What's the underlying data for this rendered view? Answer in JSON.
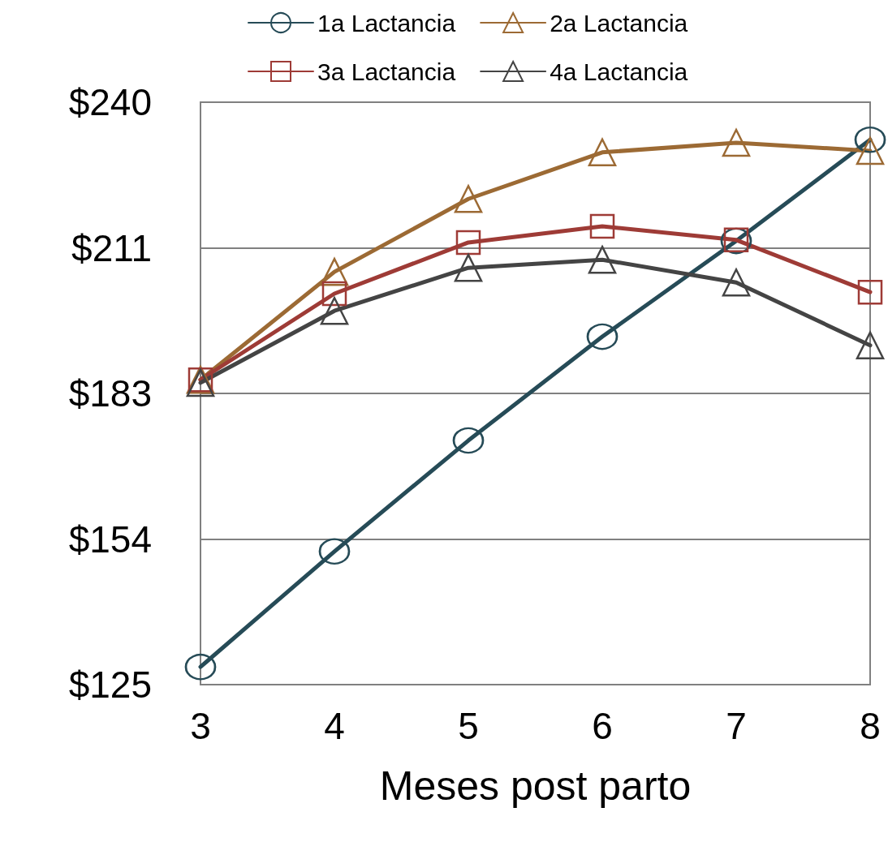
{
  "chart_data": {
    "type": "line",
    "xlabel": "Meses post parto",
    "x": [
      3,
      4,
      5,
      6,
      7,
      8
    ],
    "series": [
      {
        "name": "1a Lactancia",
        "color": "#264b57",
        "marker": "circle",
        "values": [
          128.5,
          151.3,
          173.2,
          193.7,
          212.6,
          232.6
        ]
      },
      {
        "name": "2a Lactancia",
        "color": "#9c6a34",
        "marker": "triangle",
        "values": [
          185.2,
          206.5,
          220.9,
          230.1,
          232,
          230.4
        ]
      },
      {
        "name": "3a Lactancia",
        "color": "#9e3b36",
        "marker": "square",
        "values": [
          185.2,
          202.2,
          212.3,
          215.5,
          212.8,
          202.5
        ]
      },
      {
        "name": "4a Lactancia",
        "color": "#444444",
        "marker": "triangle",
        "values": [
          184.6,
          198.8,
          207.3,
          208.9,
          204.4,
          192
        ]
      }
    ],
    "xlim": [
      3,
      8
    ],
    "xticks": [
      3,
      4,
      5,
      6,
      7,
      8
    ],
    "ylim": [
      125,
      240
    ],
    "yticks": [
      {
        "value": 125,
        "label": "$125"
      },
      {
        "value": 153.75,
        "label": "$154"
      },
      {
        "value": 182.5,
        "label": "$183"
      },
      {
        "value": 211.25,
        "label": "$211"
      },
      {
        "value": 240,
        "label": "$240"
      }
    ],
    "grid": "y",
    "legend": "top",
    "line_style": "solid"
  }
}
